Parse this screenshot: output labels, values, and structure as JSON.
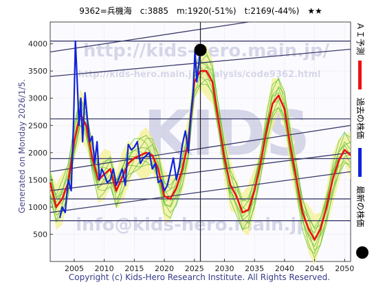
{
  "chart_data": {
    "type": "line",
    "title": "9362=兵機海　c:3885　m:1920(-51%)　t:2169(-44%)　★★",
    "xlabel": "",
    "ylabel": "",
    "xlim": [
      2001,
      2051
    ],
    "ylim": [
      0,
      4400
    ],
    "x_ticks": [
      "2005",
      "2010",
      "2015",
      "2020",
      "2025",
      "2030",
      "2035",
      "2040",
      "2045",
      "2050"
    ],
    "y_ticks": [
      "500",
      "1000",
      "1500",
      "2000",
      "2500",
      "3000",
      "3500",
      "4000"
    ],
    "grid": true,
    "legend_position": "right",
    "current_marker": {
      "x": 2026.0,
      "y": 3885
    },
    "series": [
      {
        "name": "ＡＩ予測",
        "color": "#ee1111",
        "x": [
          2001,
          2002,
          2003,
          2004,
          2005,
          2006,
          2007,
          2008,
          2009,
          2010,
          2011,
          2012,
          2013,
          2014,
          2015,
          2016,
          2017,
          2018,
          2019,
          2020,
          2021,
          2022,
          2023,
          2024,
          2025,
          2026,
          2027,
          2028,
          2029,
          2030,
          2031,
          2032,
          2033,
          2034,
          2035,
          2036,
          2037,
          2038,
          2039,
          2040,
          2041,
          2042,
          2043,
          2044,
          2045,
          2046,
          2047,
          2048,
          2049,
          2050,
          2051
        ],
        "values": [
          1450,
          1000,
          1150,
          1450,
          2200,
          2700,
          2500,
          1900,
          1500,
          1600,
          1700,
          1300,
          1550,
          1800,
          1900,
          1950,
          2000,
          1950,
          1700,
          1200,
          1150,
          1350,
          1700,
          2200,
          3300,
          3500,
          3500,
          3300,
          2600,
          1900,
          1400,
          1200,
          900,
          950,
          1300,
          1800,
          2400,
          2900,
          3050,
          2800,
          2100,
          1500,
          900,
          600,
          400,
          600,
          1000,
          1500,
          1850,
          2050,
          1950
        ]
      },
      {
        "name": "過去の株価",
        "color": "#1122dd",
        "x": [
          2002.6,
          2003.0,
          2003.5,
          2004.0,
          2004.5,
          2004.9,
          2005.2,
          2005.5,
          2005.8,
          2006.1,
          2006.4,
          2006.8,
          2007.2,
          2007.6,
          2008.0,
          2008.4,
          2008.8,
          2009.2,
          2009.6,
          2010.0,
          2010.5,
          2011.0,
          2011.5,
          2012.0,
          2012.5,
          2013.0,
          2013.5,
          2014.0,
          2014.5,
          2015.0,
          2015.5,
          2016.0,
          2016.5,
          2017.0,
          2017.5,
          2018.0,
          2018.5,
          2019.0,
          2019.5,
          2020.0,
          2020.5,
          2021.0,
          2021.5,
          2022.0,
          2022.5,
          2023.0,
          2023.5,
          2024.0,
          2024.4,
          2024.8,
          2025.1,
          2025.4,
          2025.7,
          2026.0
        ],
        "values": [
          800,
          1000,
          900,
          1500,
          1300,
          2600,
          4050,
          3300,
          2500,
          3000,
          2200,
          3100,
          2600,
          2200,
          2300,
          1800,
          2200,
          1500,
          1700,
          1600,
          1450,
          1500,
          1700,
          1400,
          1550,
          1700,
          1400,
          2150,
          2050,
          2100,
          2200,
          1800,
          1900,
          1950,
          2000,
          1700,
          1800,
          1450,
          1500,
          1300,
          1400,
          1650,
          1900,
          1500,
          1750,
          2150,
          2400,
          2000,
          2700,
          3100,
          3900,
          3300,
          3600,
          3885
        ]
      }
    ],
    "legend": [
      "ＡＩ予測",
      "過去の株価",
      "最新の株価"
    ],
    "annotations": {
      "side_label": "Generated on Monday 2026/1/5.",
      "copyright": "Copyright (c) Kids-Hero Research Institute. All Rights Reserved.",
      "watermark_main": "http://kids-hero.main.jp/",
      "watermark_sub": "http://kids-hero.main.jp/analysis/code9362.html",
      "watermark_mail": "info@kids-hero.main.jp",
      "watermark_big": "KIDS"
    }
  }
}
